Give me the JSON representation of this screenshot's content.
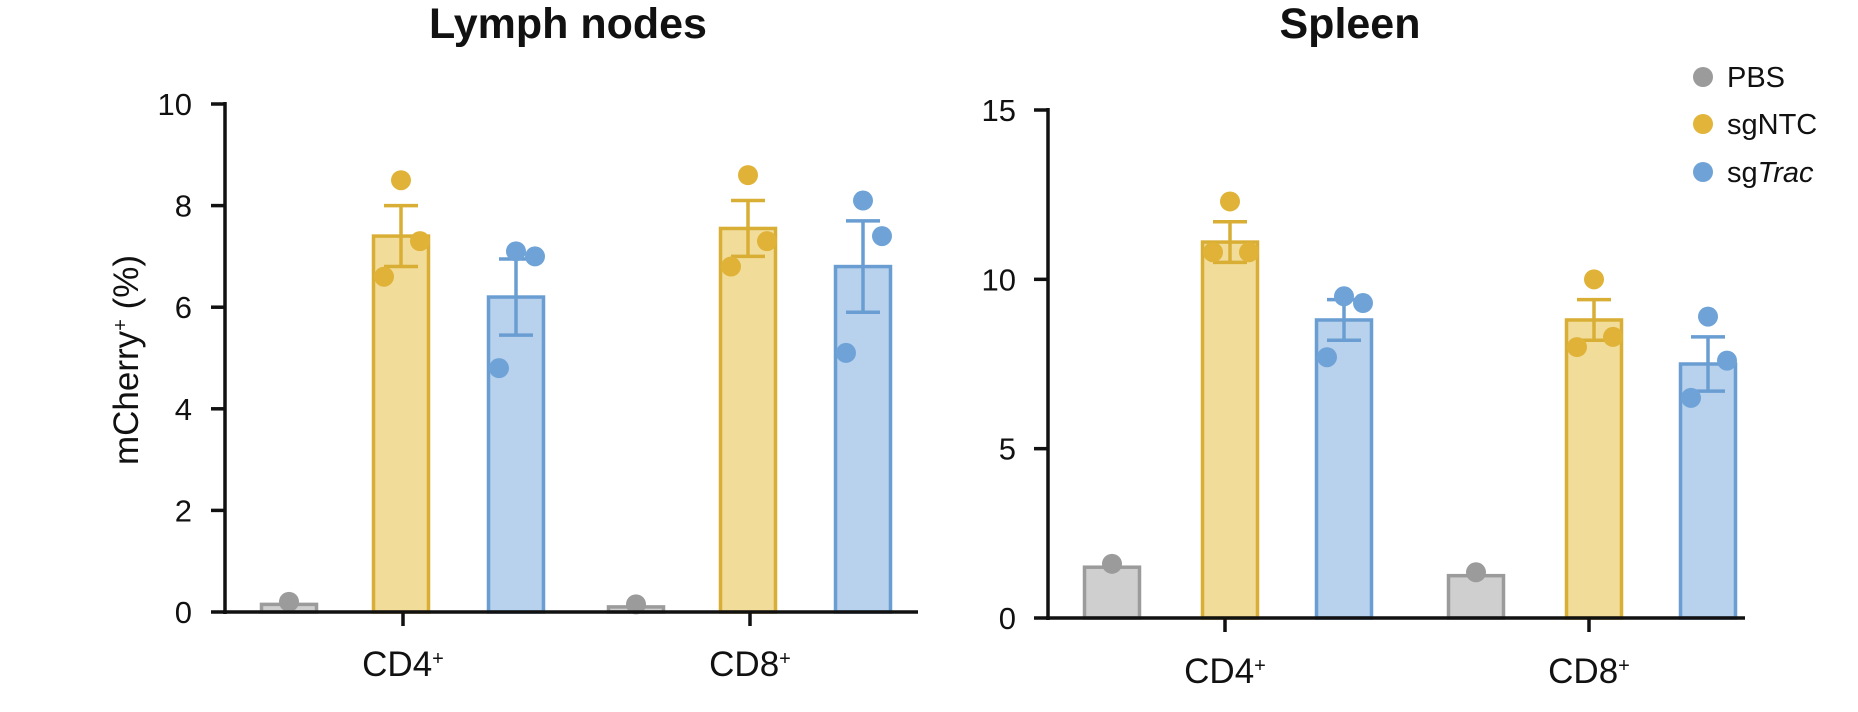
{
  "chart_data": [
    {
      "type": "bar",
      "title": "Lymph nodes",
      "xlabel": "",
      "ylabel": "mCherry",
      "ylabel_sup": "+",
      "ylabel_suffix": " (%)",
      "ylim": [
        0,
        10
      ],
      "yticks": [
        0,
        2,
        4,
        6,
        8,
        10
      ],
      "categories": [
        {
          "name": "CD4",
          "sup": "+"
        },
        {
          "name": "CD8",
          "sup": "+"
        }
      ],
      "series": [
        {
          "name": "PBS",
          "mean": [
            0.15,
            0.1
          ],
          "sem": [
            0,
            0
          ],
          "points": [
            [
              0.2
            ],
            [
              0.15
            ]
          ]
        },
        {
          "name": "sgNTC",
          "mean": [
            7.4,
            7.55
          ],
          "sem": [
            0.6,
            0.55
          ],
          "points": [
            [
              8.5,
              7.3,
              6.6
            ],
            [
              8.6,
              7.3,
              6.8
            ]
          ]
        },
        {
          "name": "sgTrac",
          "mean": [
            6.2,
            6.8
          ],
          "sem": [
            0.75,
            0.9
          ],
          "points": [
            [
              7.1,
              7.0,
              4.8
            ],
            [
              8.1,
              7.4,
              5.1
            ]
          ]
        }
      ]
    },
    {
      "type": "bar",
      "title": "Spleen",
      "xlabel": "",
      "ylabel": "",
      "ylim": [
        0,
        15
      ],
      "yticks": [
        0,
        5,
        10,
        15
      ],
      "categories": [
        {
          "name": "CD4",
          "sup": "+"
        },
        {
          "name": "CD8",
          "sup": "+"
        }
      ],
      "series": [
        {
          "name": "PBS",
          "mean": [
            1.5,
            1.25
          ],
          "sem": [
            0,
            0
          ],
          "points": [
            [
              1.6
            ],
            [
              1.35
            ]
          ]
        },
        {
          "name": "sgNTC",
          "mean": [
            11.1,
            8.8
          ],
          "sem": [
            0.6,
            0.6
          ],
          "points": [
            [
              12.3,
              10.8,
              10.8
            ],
            [
              10.0,
              8.3,
              8.0
            ]
          ]
        },
        {
          "name": "sgTrac",
          "mean": [
            8.8,
            7.5
          ],
          "sem": [
            0.6,
            0.8
          ],
          "points": [
            [
              9.5,
              9.3,
              7.7
            ],
            [
              8.9,
              7.6,
              6.5
            ]
          ]
        }
      ]
    }
  ],
  "legend": {
    "position": "top-right",
    "entries": [
      {
        "prefix": "PBS",
        "italic": "",
        "color": "#9b9b9b"
      },
      {
        "prefix": "sgNTC",
        "italic": "",
        "color": "#e3b43a"
      },
      {
        "prefix": "sg",
        "italic": "Trac",
        "color": "#6fa3d8"
      }
    ]
  },
  "colors": {
    "PBS": {
      "fill": "#cfcfcf",
      "stroke": "#9b9b9b",
      "dot": "#9b9b9b"
    },
    "sgNTC": {
      "fill": "#f1dc9a",
      "stroke": "#d9ae35",
      "dot": "#e0b338"
    },
    "sgTrac": {
      "fill": "#b8d1ec",
      "stroke": "#6a9ed2",
      "dot": "#6fa3d8"
    }
  }
}
